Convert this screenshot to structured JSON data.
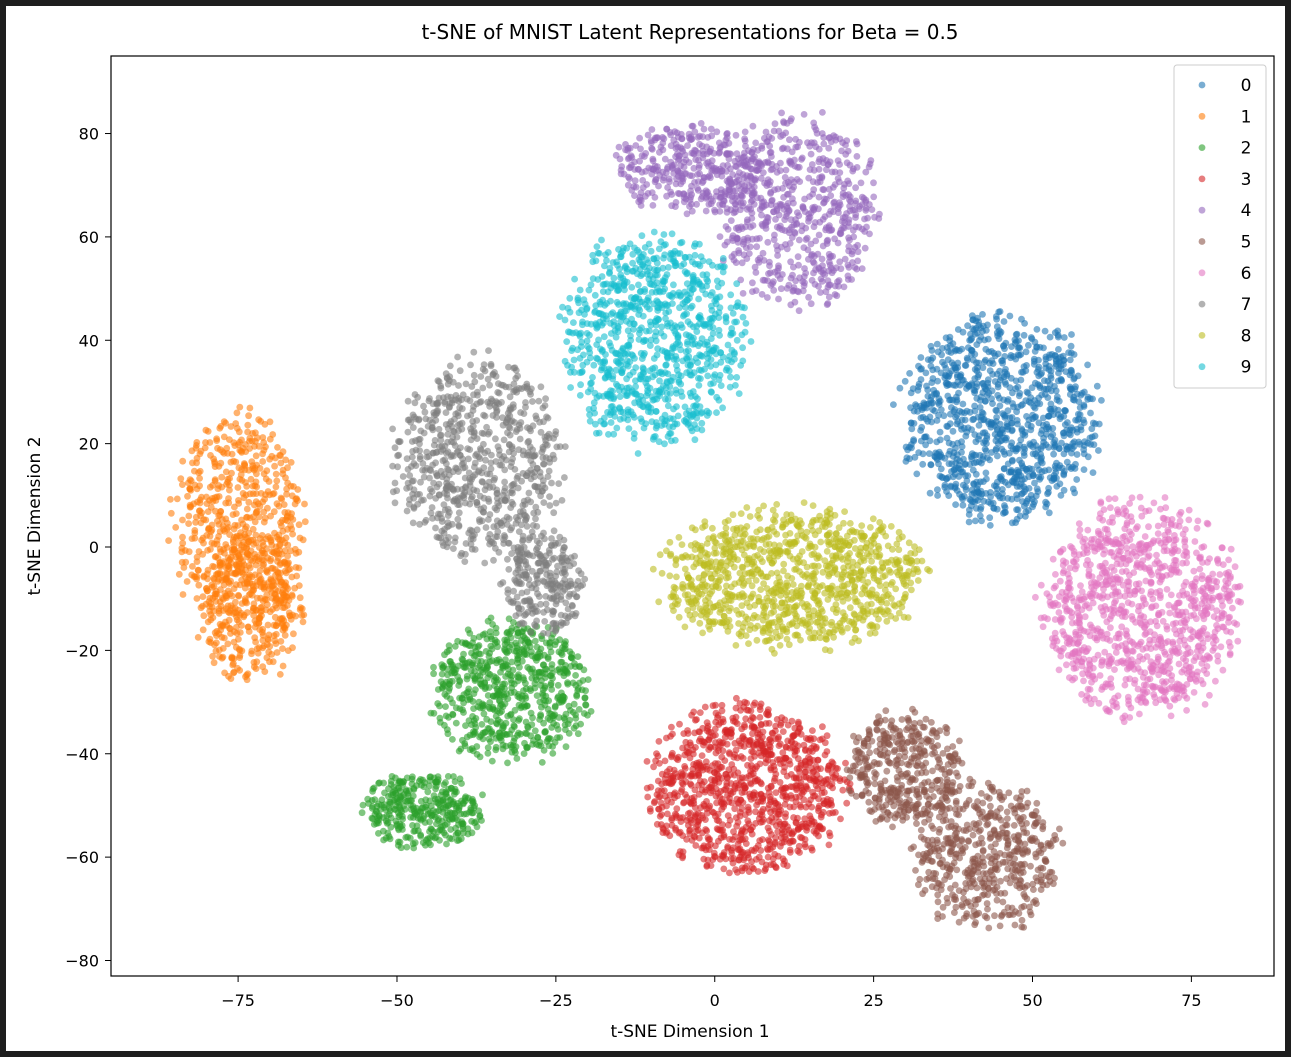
{
  "chart_data": {
    "type": "scatter",
    "title": "t-SNE of MNIST Latent Representations for Beta = 0.5",
    "xlabel": "t-SNE Dimension 1",
    "ylabel": "t-SNE Dimension 2",
    "xlim": [
      -95,
      88
    ],
    "ylim": [
      -83,
      95
    ],
    "xticks": [
      -75,
      -50,
      -25,
      0,
      25,
      50,
      75
    ],
    "yticks": [
      -80,
      -60,
      -40,
      -20,
      0,
      20,
      40,
      60,
      80
    ],
    "grid": false,
    "legend_position": "top-right",
    "marker_alpha": 0.6,
    "series": [
      {
        "name": "0",
        "color": "#1f77b4",
        "clusters": [
          {
            "cx": 45,
            "cy": 25,
            "rx": 15,
            "ry": 19,
            "n": 1000
          }
        ]
      },
      {
        "name": "1",
        "color": "#ff7f0e",
        "clusters": [
          {
            "cx": -75,
            "cy": 5,
            "rx": 10,
            "ry": 20,
            "n": 550
          },
          {
            "cx": -73,
            "cy": -12,
            "rx": 8,
            "ry": 14,
            "n": 350
          }
        ]
      },
      {
        "name": "2",
        "color": "#2ca02c",
        "clusters": [
          {
            "cx": -32,
            "cy": -28,
            "rx": 12,
            "ry": 13,
            "n": 650
          },
          {
            "cx": -46,
            "cy": -51,
            "rx": 9,
            "ry": 7,
            "n": 350
          }
        ]
      },
      {
        "name": "3",
        "color": "#d62728",
        "clusters": [
          {
            "cx": 5,
            "cy": -47,
            "rx": 15,
            "ry": 16,
            "n": 1000
          }
        ]
      },
      {
        "name": "4",
        "color": "#9467bd",
        "clusters": [
          {
            "cx": 13,
            "cy": 65,
            "rx": 12,
            "ry": 18,
            "n": 600
          },
          {
            "cx": -4,
            "cy": 73,
            "rx": 12,
            "ry": 8,
            "n": 350
          }
        ]
      },
      {
        "name": "5",
        "color": "#8c564b",
        "clusters": [
          {
            "cx": 30,
            "cy": -43,
            "rx": 9,
            "ry": 11,
            "n": 400
          },
          {
            "cx": 43,
            "cy": -60,
            "rx": 11,
            "ry": 14,
            "n": 500
          }
        ]
      },
      {
        "name": "6",
        "color": "#e377c2",
        "clusters": [
          {
            "cx": 67,
            "cy": -12,
            "rx": 15,
            "ry": 20,
            "n": 1000
          }
        ]
      },
      {
        "name": "7",
        "color": "#7f7f7f",
        "clusters": [
          {
            "cx": -37,
            "cy": 17,
            "rx": 13,
            "ry": 19,
            "n": 700
          },
          {
            "cx": -27,
            "cy": -7,
            "rx": 6,
            "ry": 10,
            "n": 250
          }
        ]
      },
      {
        "name": "8",
        "color": "#bcbd22",
        "clusters": [
          {
            "cx": 12,
            "cy": -6,
            "rx": 20,
            "ry": 13,
            "n": 1000
          }
        ]
      },
      {
        "name": "9",
        "color": "#17becf",
        "clusters": [
          {
            "cx": -10,
            "cy": 40,
            "rx": 14,
            "ry": 20,
            "n": 900
          }
        ]
      }
    ]
  }
}
